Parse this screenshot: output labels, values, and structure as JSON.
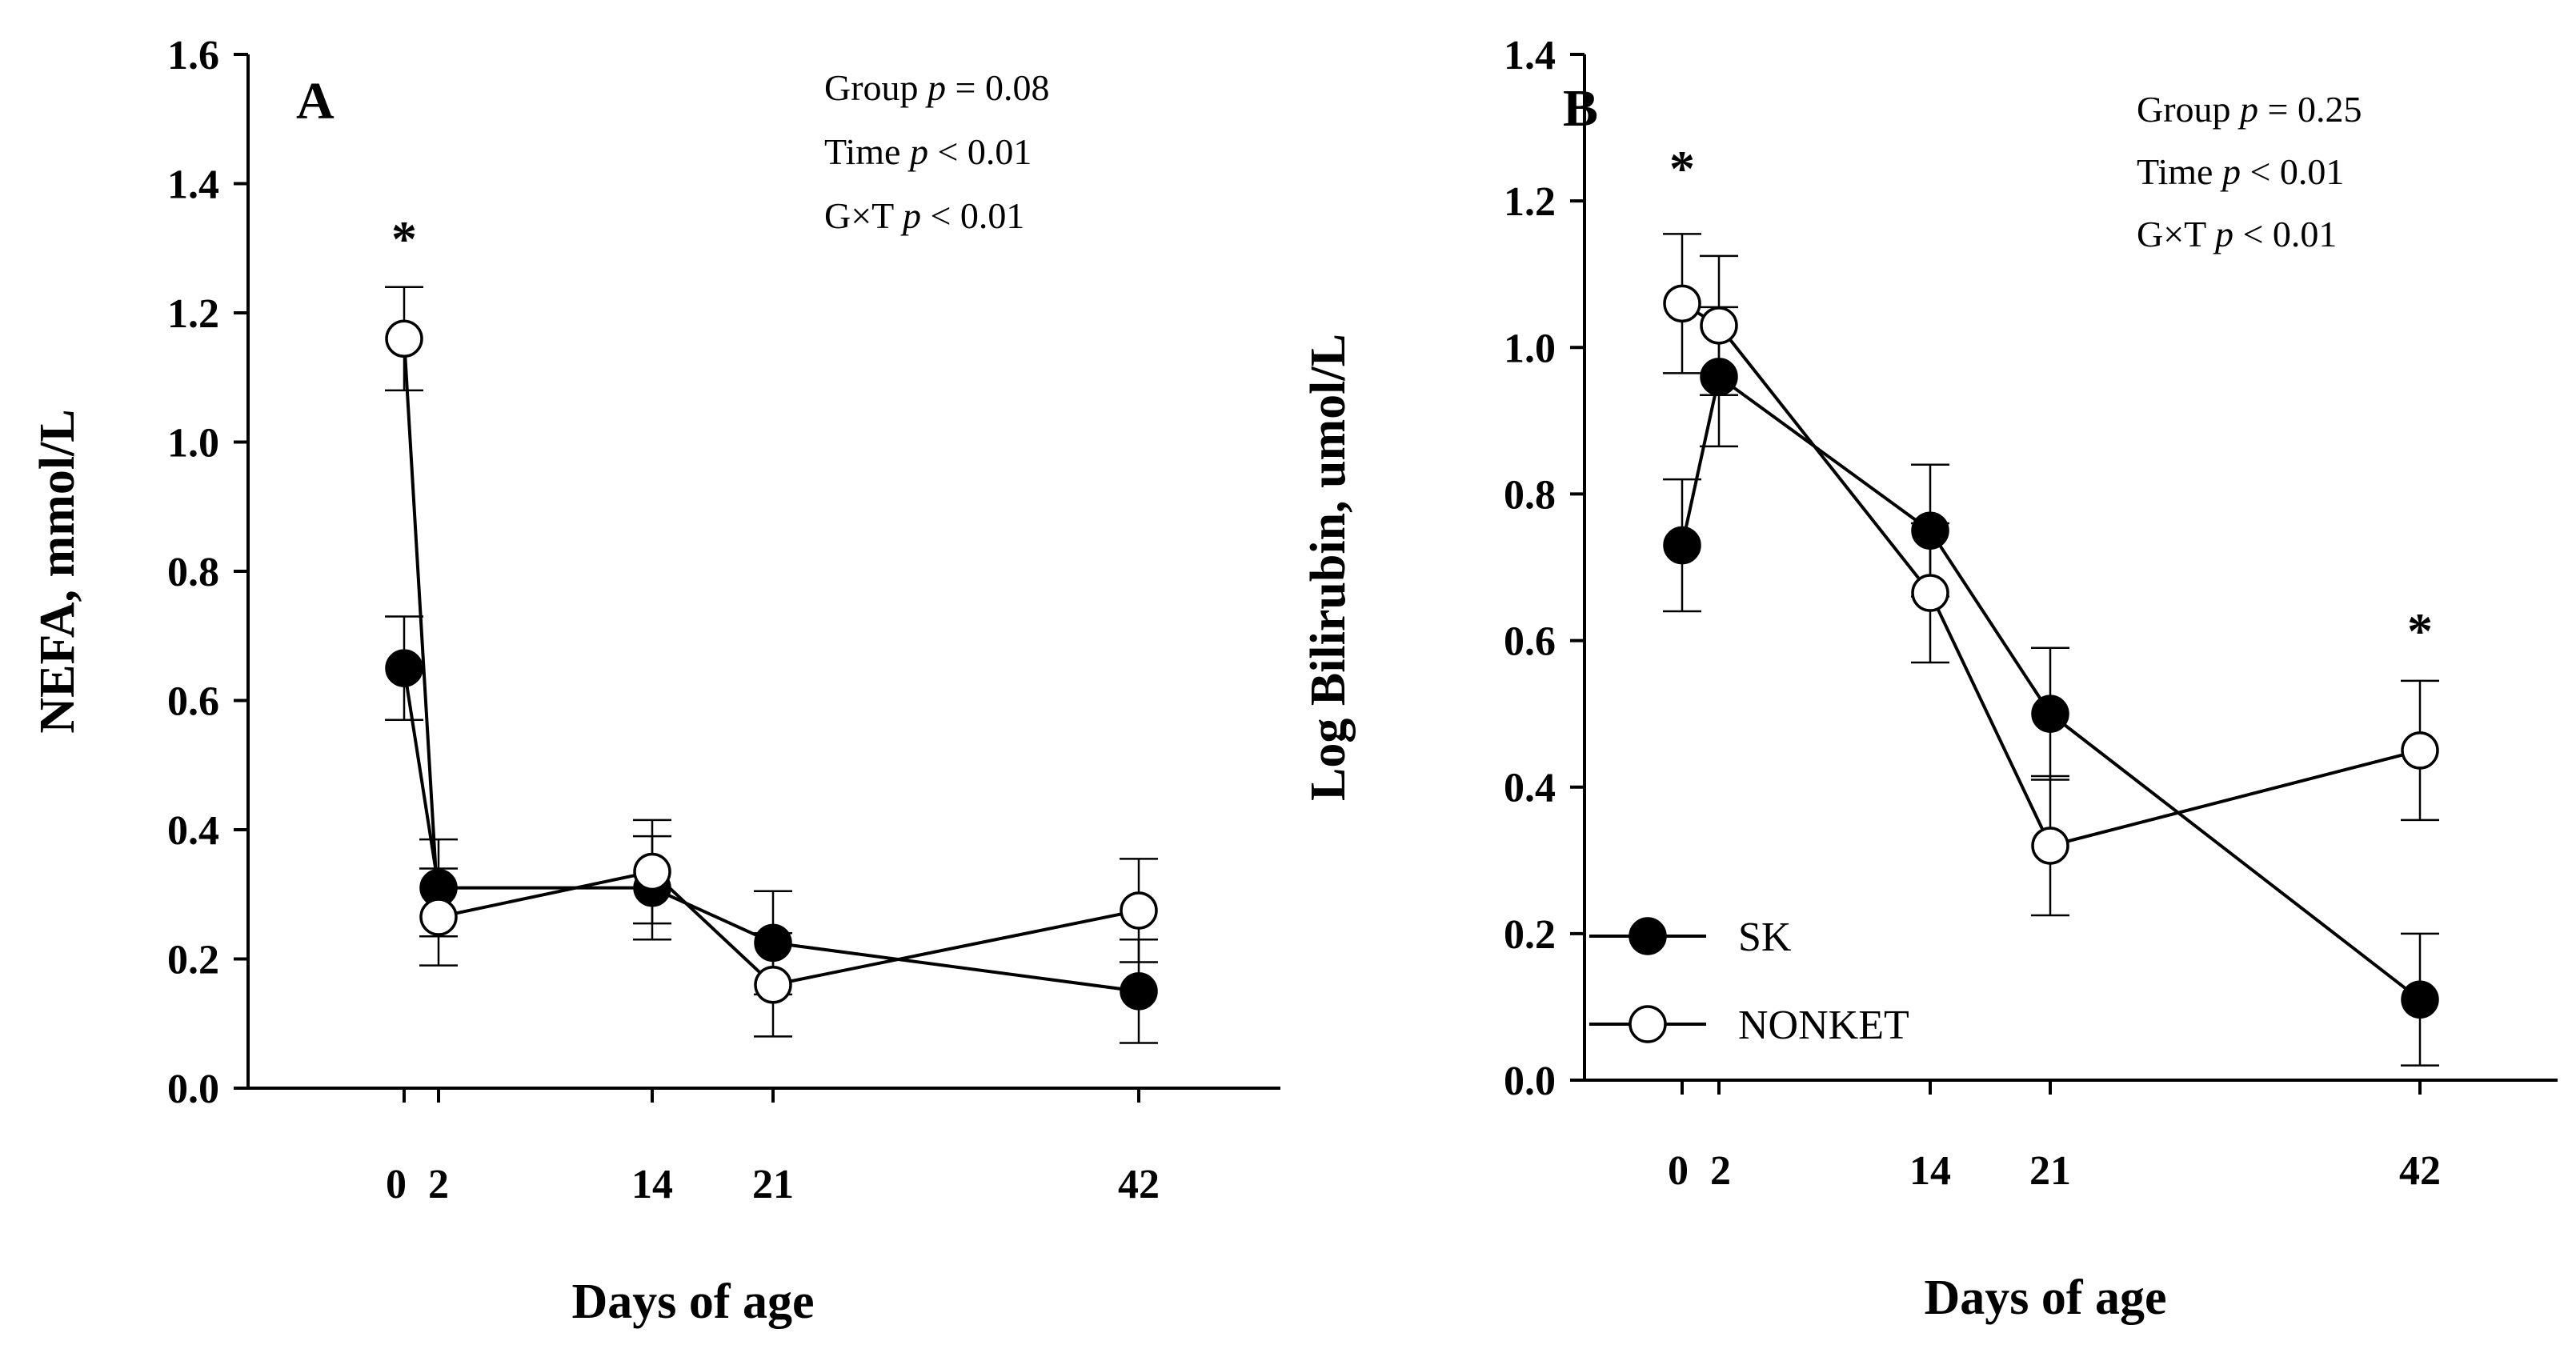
{
  "chart_data": [
    {
      "type": "line",
      "panel_label": "A",
      "xlabel": "Days of age",
      "ylabel": "NEFA, mmol/L",
      "ylim": [
        0,
        1.6
      ],
      "yticks": [
        "0.0",
        "0.2",
        "0.4",
        "0.6",
        "0.8",
        "1.0",
        "1.2",
        "1.4",
        "1.6"
      ],
      "xticks": [
        "0",
        "2",
        "14",
        "21",
        "42"
      ],
      "stats": [
        {
          "term": "Group",
          "sym": "p",
          "rel": " = 0.08"
        },
        {
          "term": "Time",
          "sym": "p",
          "rel": " < 0.01"
        },
        {
          "term": "G×T",
          "sym": "p",
          "rel": " < 0.01"
        }
      ],
      "significance": [
        {
          "x": 0,
          "label": "*"
        }
      ],
      "series": [
        {
          "name": "SK",
          "marker": "filled",
          "x": [
            0,
            2,
            14,
            21,
            42
          ],
          "y": [
            0.65,
            0.31,
            0.31,
            0.225,
            0.15
          ],
          "err": [
            0.08,
            0.075,
            0.08,
            0.08,
            0.08
          ]
        },
        {
          "name": "NONKET",
          "marker": "open",
          "x": [
            0,
            2,
            14,
            21,
            42
          ],
          "y": [
            1.16,
            0.265,
            0.335,
            0.16,
            0.275
          ],
          "err": [
            0.08,
            0.075,
            0.08,
            0.08,
            0.08
          ]
        }
      ]
    },
    {
      "type": "line",
      "panel_label": "B",
      "xlabel": "Days of age",
      "ylabel": "Log Bilirubin, umol/L",
      "ylim": [
        0,
        1.4
      ],
      "yticks": [
        "0.0",
        "0.2",
        "0.4",
        "0.6",
        "0.8",
        "1.0",
        "1.2",
        "1.4"
      ],
      "xticks": [
        "0",
        "2",
        "14",
        "21",
        "42"
      ],
      "stats": [
        {
          "term": "Group",
          "sym": "p",
          "rel": " = 0.25"
        },
        {
          "term": "Time",
          "sym": "p",
          "rel": " < 0.01"
        },
        {
          "term": "G×T",
          "sym": "p",
          "rel": " < 0.01"
        }
      ],
      "significance": [
        {
          "x": 0,
          "label": "*"
        },
        {
          "x": 42,
          "label": "*"
        }
      ],
      "legend": {
        "position": "bottom-left",
        "entries": [
          "SK",
          "NONKET"
        ]
      },
      "series": [
        {
          "name": "SK",
          "marker": "filled",
          "x": [
            0,
            2,
            14,
            21,
            42
          ],
          "y": [
            0.73,
            0.96,
            0.75,
            0.5,
            0.11
          ],
          "err": [
            0.09,
            0.095,
            0.09,
            0.09,
            0.09
          ]
        },
        {
          "name": "NONKET",
          "marker": "open",
          "x": [
            0,
            2,
            14,
            21,
            42
          ],
          "y": [
            1.06,
            1.03,
            0.665,
            0.32,
            0.45
          ],
          "err": [
            0.095,
            0.095,
            0.095,
            0.095,
            0.095
          ]
        }
      ]
    }
  ]
}
